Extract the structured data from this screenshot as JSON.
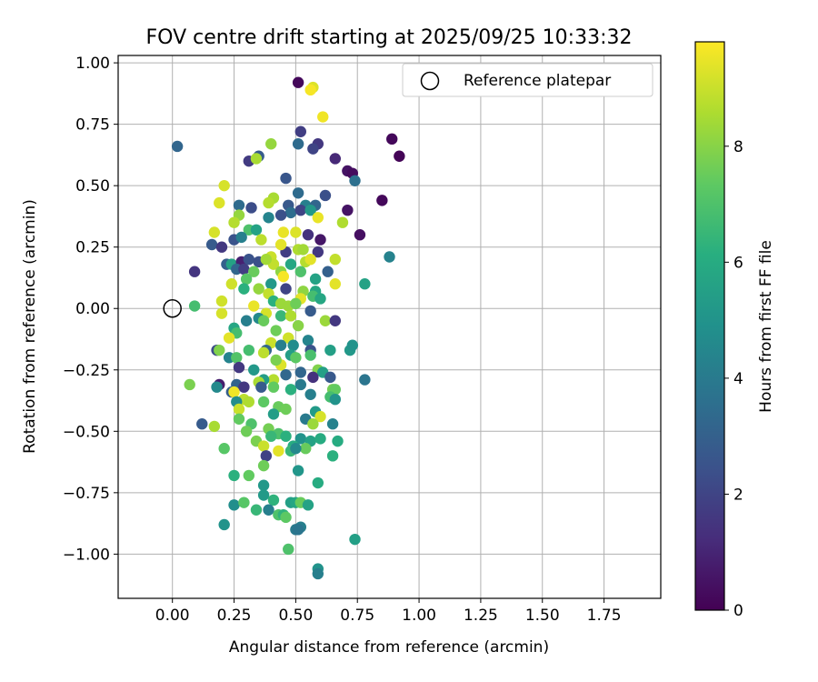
{
  "chart_data": {
    "type": "scatter",
    "title": "FOV centre drift starting at 2025/09/25 10:33:32",
    "xlabel": "Angular distance from reference (arcmin)",
    "ylabel": "Rotation from reference (arcmin)",
    "xlim": [
      -0.22,
      1.98
    ],
    "ylim": [
      -1.18,
      1.03
    ],
    "xticks": [
      0.0,
      0.25,
      0.5,
      0.75,
      1.0,
      1.25,
      1.5,
      1.75
    ],
    "xtick_labels": [
      "0.00",
      "0.25",
      "0.50",
      "0.75",
      "1.00",
      "1.25",
      "1.50",
      "1.75"
    ],
    "yticks": [
      1.0,
      0.75,
      0.5,
      0.25,
      0.0,
      -0.25,
      -0.5,
      -0.75,
      -1.0
    ],
    "ytick_labels": [
      "1.00",
      "0.75",
      "0.50",
      "0.25",
      "0.00",
      "−0.25",
      "−0.50",
      "−0.75",
      "−1.00"
    ],
    "grid": true,
    "legend": {
      "location": "top-right",
      "entries": [
        "Reference platepar"
      ]
    },
    "reference_point": {
      "label": "Reference platepar",
      "x": 0.0,
      "y": 0.0,
      "marker": "open-circle"
    },
    "colorbar": {
      "label": "Hours from first FF file",
      "range": [
        0,
        9.8
      ],
      "ticks": [
        0,
        2,
        4,
        6,
        8
      ],
      "tick_labels": [
        "0",
        "2",
        "4",
        "6",
        "8"
      ],
      "colormap": "viridis"
    },
    "points": [
      [
        0.51,
        0.92,
        0.2
      ],
      [
        0.57,
        0.9,
        9.3
      ],
      [
        0.56,
        0.89,
        9.7
      ],
      [
        0.61,
        0.78,
        9.6
      ],
      [
        0.89,
        0.69,
        0.2
      ],
      [
        0.92,
        0.62,
        0.1
      ],
      [
        0.52,
        0.72,
        1.8
      ],
      [
        0.59,
        0.67,
        1.6
      ],
      [
        0.57,
        0.65,
        2.0
      ],
      [
        0.51,
        0.67,
        3.4
      ],
      [
        0.4,
        0.67,
        8.2
      ],
      [
        0.02,
        0.66,
        3.2
      ],
      [
        0.66,
        0.61,
        1.1
      ],
      [
        0.35,
        0.62,
        2.8
      ],
      [
        0.31,
        0.6,
        1.7
      ],
      [
        0.34,
        0.61,
        8.5
      ],
      [
        0.71,
        0.56,
        0.5
      ],
      [
        0.73,
        0.55,
        0.3
      ],
      [
        0.74,
        0.52,
        3.6
      ],
      [
        0.46,
        0.53,
        2.6
      ],
      [
        0.85,
        0.44,
        0.2
      ],
      [
        0.21,
        0.5,
        9.2
      ],
      [
        0.51,
        0.47,
        3.4
      ],
      [
        0.62,
        0.46,
        2.4
      ],
      [
        0.41,
        0.45,
        8.5
      ],
      [
        0.47,
        0.42,
        2.7
      ],
      [
        0.54,
        0.42,
        4.2
      ],
      [
        0.58,
        0.42,
        3.2
      ],
      [
        0.19,
        0.43,
        9.3
      ],
      [
        0.39,
        0.43,
        8.7
      ],
      [
        0.48,
        0.39,
        3.5
      ],
      [
        0.52,
        0.4,
        2.0
      ],
      [
        0.56,
        0.4,
        5.2
      ],
      [
        0.71,
        0.4,
        0.5
      ],
      [
        0.27,
        0.42,
        3.4
      ],
      [
        0.32,
        0.41,
        2.3
      ],
      [
        0.44,
        0.38,
        2.4
      ],
      [
        0.27,
        0.38,
        8.2
      ],
      [
        0.39,
        0.37,
        4.4
      ],
      [
        0.59,
        0.37,
        9.5
      ],
      [
        0.69,
        0.35,
        8.6
      ],
      [
        0.25,
        0.35,
        8.7
      ],
      [
        0.45,
        0.31,
        9.5
      ],
      [
        0.31,
        0.32,
        7.0
      ],
      [
        0.34,
        0.32,
        5.6
      ],
      [
        0.5,
        0.31,
        9.3
      ],
      [
        0.55,
        0.3,
        1.4
      ],
      [
        0.17,
        0.31,
        9.2
      ],
      [
        0.76,
        0.3,
        0.4
      ],
      [
        0.6,
        0.28,
        0.6
      ],
      [
        0.25,
        0.28,
        2.5
      ],
      [
        0.28,
        0.29,
        4.2
      ],
      [
        0.36,
        0.28,
        8.8
      ],
      [
        0.16,
        0.26,
        2.8
      ],
      [
        0.2,
        0.25,
        1.6
      ],
      [
        0.46,
        0.23,
        1.8
      ],
      [
        0.51,
        0.24,
        8.6
      ],
      [
        0.53,
        0.24,
        8.4
      ],
      [
        0.59,
        0.23,
        1.6
      ],
      [
        0.44,
        0.26,
        9.4
      ],
      [
        0.88,
        0.21,
        4.3
      ],
      [
        0.66,
        0.2,
        8.9
      ],
      [
        0.4,
        0.21,
        9.0
      ],
      [
        0.41,
        0.18,
        8.9
      ],
      [
        0.22,
        0.18,
        3.0
      ],
      [
        0.24,
        0.18,
        5.6
      ],
      [
        0.28,
        0.19,
        0.9
      ],
      [
        0.31,
        0.2,
        2.5
      ],
      [
        0.35,
        0.19,
        2.4
      ],
      [
        0.38,
        0.2,
        8.4
      ],
      [
        0.48,
        0.18,
        5.8
      ],
      [
        0.54,
        0.19,
        8.7
      ],
      [
        0.56,
        0.2,
        9.4
      ],
      [
        0.44,
        0.15,
        8.1
      ],
      [
        0.45,
        0.13,
        9.7
      ],
      [
        0.26,
        0.16,
        3.2
      ],
      [
        0.29,
        0.16,
        1.8
      ],
      [
        0.33,
        0.15,
        7.5
      ],
      [
        0.09,
        0.15,
        1.5
      ],
      [
        0.52,
        0.15,
        7.0
      ],
      [
        0.63,
        0.15,
        3.0
      ],
      [
        0.58,
        0.12,
        5.6
      ],
      [
        0.3,
        0.12,
        7.2
      ],
      [
        0.66,
        0.1,
        9.4
      ],
      [
        0.78,
        0.1,
        5.6
      ],
      [
        0.24,
        0.1,
        9.1
      ],
      [
        0.4,
        0.1,
        5.2
      ],
      [
        0.46,
        0.08,
        2.0
      ],
      [
        0.53,
        0.07,
        8.1
      ],
      [
        0.35,
        0.08,
        8.2
      ],
      [
        0.29,
        0.08,
        6.2
      ],
      [
        0.58,
        0.07,
        5.8
      ],
      [
        0.39,
        0.06,
        8.9
      ],
      [
        0.52,
        0.04,
        9.4
      ],
      [
        0.57,
        0.05,
        6.8
      ],
      [
        0.6,
        0.04,
        5.8
      ],
      [
        0.2,
        0.03,
        9.1
      ],
      [
        0.33,
        0.01,
        9.5
      ],
      [
        0.41,
        0.03,
        6.2
      ],
      [
        0.44,
        0.02,
        8.3
      ],
      [
        0.47,
        0.01,
        8.3
      ],
      [
        0.5,
        0.02,
        7.6
      ],
      [
        0.56,
        -0.01,
        2.8
      ],
      [
        0.09,
        0.01,
        6.8
      ],
      [
        0.2,
        -0.02,
        9.2
      ],
      [
        0.38,
        -0.02,
        9.2
      ],
      [
        0.44,
        -0.03,
        6.5
      ],
      [
        0.48,
        -0.03,
        8.6
      ],
      [
        0.35,
        -0.04,
        4.6
      ],
      [
        0.37,
        -0.05,
        7.5
      ],
      [
        0.3,
        -0.05,
        4.2
      ],
      [
        0.62,
        -0.05,
        8.3
      ],
      [
        0.66,
        -0.05,
        1.6
      ],
      [
        0.42,
        -0.09,
        7.6
      ],
      [
        0.25,
        -0.08,
        5.8
      ],
      [
        0.51,
        -0.07,
        8.0
      ],
      [
        0.26,
        -0.1,
        6.8
      ],
      [
        0.47,
        -0.12,
        9.1
      ],
      [
        0.23,
        -0.12,
        9.4
      ],
      [
        0.55,
        -0.13,
        4.4
      ],
      [
        0.4,
        -0.14,
        9.0
      ],
      [
        0.44,
        -0.15,
        4.2
      ],
      [
        0.49,
        -0.15,
        4.7
      ],
      [
        0.56,
        -0.17,
        2.5
      ],
      [
        0.64,
        -0.17,
        5.5
      ],
      [
        0.18,
        -0.17,
        2.3
      ],
      [
        0.19,
        -0.17,
        7.9
      ],
      [
        0.38,
        -0.17,
        3.2
      ],
      [
        0.37,
        -0.18,
        8.8
      ],
      [
        0.31,
        -0.17,
        6.8
      ],
      [
        0.48,
        -0.19,
        5.4
      ],
      [
        0.72,
        -0.17,
        5.2
      ],
      [
        0.73,
        -0.15,
        5.0
      ],
      [
        0.23,
        -0.2,
        4.4
      ],
      [
        0.26,
        -0.2,
        7.1
      ],
      [
        0.5,
        -0.2,
        7.3
      ],
      [
        0.56,
        -0.19,
        6.9
      ],
      [
        0.44,
        -0.23,
        9.3
      ],
      [
        0.42,
        -0.21,
        7.8
      ],
      [
        0.27,
        -0.24,
        1.6
      ],
      [
        0.33,
        -0.25,
        5.2
      ],
      [
        0.59,
        -0.25,
        7.9
      ],
      [
        0.52,
        -0.26,
        3.2
      ],
      [
        0.61,
        -0.26,
        5.5
      ],
      [
        0.46,
        -0.27,
        3.3
      ],
      [
        0.57,
        -0.28,
        1.4
      ],
      [
        0.64,
        -0.28,
        2.7
      ],
      [
        0.41,
        -0.29,
        8.7
      ],
      [
        0.78,
        -0.29,
        3.8
      ],
      [
        0.37,
        -0.29,
        5.4
      ],
      [
        0.35,
        -0.3,
        8.5
      ],
      [
        0.19,
        -0.31,
        0.8
      ],
      [
        0.26,
        -0.31,
        3.1
      ],
      [
        0.29,
        -0.32,
        1.6
      ],
      [
        0.52,
        -0.31,
        4.0
      ],
      [
        0.18,
        -0.32,
        4.6
      ],
      [
        0.41,
        -0.32,
        7.4
      ],
      [
        0.07,
        -0.31,
        7.8
      ],
      [
        0.36,
        -0.32,
        2.8
      ],
      [
        0.48,
        -0.33,
        6.2
      ],
      [
        0.65,
        -0.33,
        7.7
      ],
      [
        0.66,
        -0.33,
        7.4
      ],
      [
        0.24,
        -0.34,
        2.9
      ],
      [
        0.25,
        -0.34,
        9.6
      ],
      [
        0.56,
        -0.35,
        4.2
      ],
      [
        0.64,
        -0.36,
        6.8
      ],
      [
        0.66,
        -0.37,
        5.0
      ],
      [
        0.29,
        -0.37,
        8.8
      ],
      [
        0.26,
        -0.38,
        4.7
      ],
      [
        0.31,
        -0.38,
        8.6
      ],
      [
        0.37,
        -0.38,
        7.3
      ],
      [
        0.43,
        -0.4,
        7.5
      ],
      [
        0.46,
        -0.41,
        7.6
      ],
      [
        0.27,
        -0.41,
        9.0
      ],
      [
        0.58,
        -0.42,
        5.3
      ],
      [
        0.41,
        -0.43,
        5.4
      ],
      [
        0.6,
        -0.44,
        9.2
      ],
      [
        0.27,
        -0.45,
        7.4
      ],
      [
        0.54,
        -0.45,
        4.0
      ],
      [
        0.12,
        -0.47,
        2.8
      ],
      [
        0.17,
        -0.48,
        8.5
      ],
      [
        0.32,
        -0.47,
        7.0
      ],
      [
        0.39,
        -0.49,
        7.7
      ],
      [
        0.57,
        -0.47,
        8.3
      ],
      [
        0.65,
        -0.47,
        4.3
      ],
      [
        0.3,
        -0.5,
        7.6
      ],
      [
        0.43,
        -0.51,
        7.0
      ],
      [
        0.4,
        -0.52,
        6.5
      ],
      [
        0.46,
        -0.52,
        6.2
      ],
      [
        0.52,
        -0.53,
        5.0
      ],
      [
        0.56,
        -0.54,
        5.6
      ],
      [
        0.6,
        -0.53,
        6.0
      ],
      [
        0.67,
        -0.54,
        6.0
      ],
      [
        0.34,
        -0.54,
        7.8
      ],
      [
        0.37,
        -0.56,
        9.0
      ],
      [
        0.49,
        -0.56,
        6.0
      ],
      [
        0.21,
        -0.57,
        7.2
      ],
      [
        0.43,
        -0.58,
        9.4
      ],
      [
        0.48,
        -0.58,
        6.5
      ],
      [
        0.54,
        -0.57,
        7.5
      ],
      [
        0.5,
        -0.57,
        4.6
      ],
      [
        0.38,
        -0.6,
        1.9
      ],
      [
        0.65,
        -0.6,
        6.2
      ],
      [
        0.37,
        -0.64,
        7.6
      ],
      [
        0.25,
        -0.68,
        6.2
      ],
      [
        0.31,
        -0.68,
        7.4
      ],
      [
        0.51,
        -0.66,
        5.1
      ],
      [
        0.37,
        -0.72,
        5.2
      ],
      [
        0.59,
        -0.71,
        6.0
      ],
      [
        0.37,
        -0.76,
        5.3
      ],
      [
        0.41,
        -0.78,
        6.3
      ],
      [
        0.48,
        -0.79,
        5.5
      ],
      [
        0.5,
        -0.79,
        5.8
      ],
      [
        0.52,
        -0.79,
        7.5
      ],
      [
        0.55,
        -0.8,
        5.6
      ],
      [
        0.25,
        -0.8,
        4.8
      ],
      [
        0.29,
        -0.79,
        7.2
      ],
      [
        0.34,
        -0.82,
        6.5
      ],
      [
        0.39,
        -0.82,
        4.2
      ],
      [
        0.43,
        -0.84,
        7.0
      ],
      [
        0.45,
        -0.84,
        6.3
      ],
      [
        0.46,
        -0.85,
        7.3
      ],
      [
        0.21,
        -0.88,
        5.0
      ],
      [
        0.5,
        -0.9,
        4.0
      ],
      [
        0.52,
        -0.89,
        4.2
      ],
      [
        0.51,
        -0.9,
        3.8
      ],
      [
        0.74,
        -0.94,
        5.5
      ],
      [
        0.47,
        -0.98,
        7.0
      ],
      [
        0.59,
        -1.06,
        5.0
      ],
      [
        0.59,
        -1.08,
        4.2
      ]
    ]
  }
}
